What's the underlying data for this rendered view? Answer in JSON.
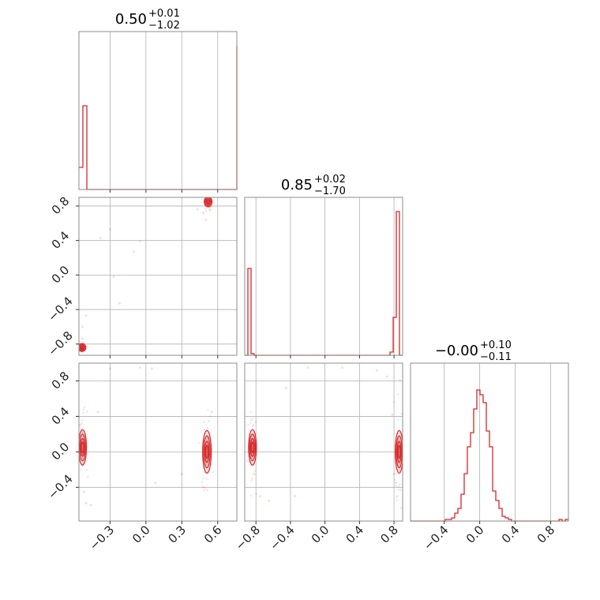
{
  "chart_data": {
    "type": "corner",
    "color": "#d62728",
    "parameters": [
      {
        "title": {
          "value": "0.50",
          "plus": "+0.01",
          "minus": "−1.02"
        },
        "range": [
          -0.56,
          0.76
        ],
        "ticks": [
          -0.3,
          0.0,
          0.3,
          0.6
        ],
        "tick_labels": [
          "−0.3",
          "0.0",
          "0.3",
          "0.6"
        ],
        "hist": {
          "edges_start": -0.56,
          "edge_step": 0.033,
          "counts": [
            0.14,
            0.53,
            0,
            0,
            0,
            0,
            0,
            0,
            0,
            0,
            0,
            0,
            0,
            0,
            0,
            0,
            0,
            0,
            0,
            0,
            0,
            0,
            0,
            0,
            0,
            0,
            0,
            0,
            0,
            0,
            0,
            0,
            0,
            0,
            0,
            0,
            0,
            0,
            0,
            0,
            0,
            0,
            0,
            0,
            0,
            0.01,
            0.91,
            0.44,
            0,
            0
          ]
        }
      },
      {
        "title": {
          "value": "0.85",
          "plus": "+0.02",
          "minus": "−1.70"
        },
        "range": [
          -0.93,
          0.9
        ],
        "ticks": [
          -0.8,
          -0.4,
          0.0,
          0.4,
          0.8
        ],
        "tick_labels": [
          "−0.8",
          "−0.4",
          "0.0",
          "0.4",
          "0.8"
        ],
        "hist": {
          "edges_start": -0.93,
          "edge_step": 0.0366,
          "counts": [
            0,
            0.55,
            0.01,
            0,
            0,
            0,
            0,
            0,
            0,
            0,
            0,
            0,
            0,
            0,
            0,
            0,
            0,
            0,
            0,
            0,
            0,
            0,
            0,
            0,
            0,
            0,
            0,
            0,
            0,
            0,
            0,
            0,
            0,
            0,
            0,
            0,
            0,
            0,
            0,
            0,
            0,
            0,
            0,
            0,
            0,
            0,
            0.02,
            0.24,
            0.91,
            0
          ]
        }
      },
      {
        "title": {
          "value": "−0.00",
          "plus": "+0.10",
          "minus": "−0.11"
        },
        "range": [
          -0.78,
          1.0
        ],
        "ticks": [
          -0.4,
          0.0,
          0.4,
          0.8
        ],
        "tick_labels": [
          "−0.4",
          "0.0",
          "0.4",
          "0.8"
        ],
        "hist": {
          "edges_start": -0.78,
          "edge_step": 0.0356,
          "counts": [
            0,
            0,
            0,
            0,
            0,
            0,
            0,
            0,
            0,
            0,
            0,
            0.01,
            0.01,
            0.02,
            0.05,
            0.08,
            0.17,
            0.3,
            0.47,
            0.56,
            0.71,
            0.83,
            0.8,
            0.75,
            0.57,
            0.47,
            0.19,
            0.13,
            0.08,
            0.03,
            0.02,
            0.01,
            0,
            0,
            0,
            0,
            0,
            0,
            0,
            0,
            0,
            0,
            0,
            0,
            0,
            0,
            0,
            0.01,
            0,
            0.01
          ]
        }
      }
    ],
    "pairs": [
      {
        "row": 1,
        "col": 0,
        "clusters": [
          {
            "x": -0.535,
            "y": -0.84,
            "sx": 0.008,
            "sy": 0.012
          },
          {
            "x": 0.52,
            "y": 0.85,
            "sx": 0.012,
            "sy": 0.03
          }
        ],
        "scatter": [
          [
            -0.53,
            -0.74
          ],
          [
            -0.5,
            -0.47
          ],
          [
            -0.38,
            0.43
          ],
          [
            -0.3,
            0.53
          ],
          [
            -0.27,
            -0.02
          ],
          [
            -0.22,
            -0.33
          ],
          [
            -0.1,
            0.27
          ],
          [
            -0.05,
            0.39
          ],
          [
            0.43,
            0.76
          ],
          [
            0.48,
            0.72
          ],
          [
            -0.53,
            -0.6
          ],
          [
            0.5,
            0.64
          ]
        ]
      },
      {
        "row": 2,
        "col": 0,
        "clusters": [
          {
            "x": -0.53,
            "y": 0.05,
            "sx": 0.012,
            "sy": 0.1
          },
          {
            "x": 0.51,
            "y": 0.0,
            "sx": 0.018,
            "sy": 0.12
          }
        ],
        "scatter": [
          [
            -0.4,
            0.45
          ],
          [
            -0.52,
            -0.45
          ],
          [
            -0.5,
            -0.58
          ],
          [
            -0.46,
            -0.6
          ],
          [
            -0.3,
            0.94
          ],
          [
            -0.05,
            0.95
          ],
          [
            0.05,
            0.94
          ],
          [
            0.08,
            -0.35
          ],
          [
            0.3,
            -0.25
          ],
          [
            0.55,
            0.45
          ],
          [
            0.48,
            -0.4
          ],
          [
            -0.55,
            0.3
          ]
        ]
      },
      {
        "row": 2,
        "col": 1,
        "clusters": [
          {
            "x": -0.84,
            "y": 0.05,
            "sx": 0.015,
            "sy": 0.1
          },
          {
            "x": 0.86,
            "y": 0.0,
            "sx": 0.02,
            "sy": 0.12
          }
        ],
        "scatter": [
          [
            -0.83,
            0.3
          ],
          [
            -0.82,
            -0.25
          ],
          [
            -0.75,
            -0.5
          ],
          [
            -0.65,
            -0.55
          ],
          [
            -0.45,
            0.72
          ],
          [
            -0.2,
            0.95
          ],
          [
            0.2,
            0.95
          ],
          [
            0.6,
            0.92
          ],
          [
            0.72,
            0.85
          ],
          [
            0.78,
            0.42
          ],
          [
            0.8,
            -0.25
          ],
          [
            0.82,
            -0.35
          ],
          [
            -0.35,
            -0.5
          ]
        ]
      }
    ]
  }
}
